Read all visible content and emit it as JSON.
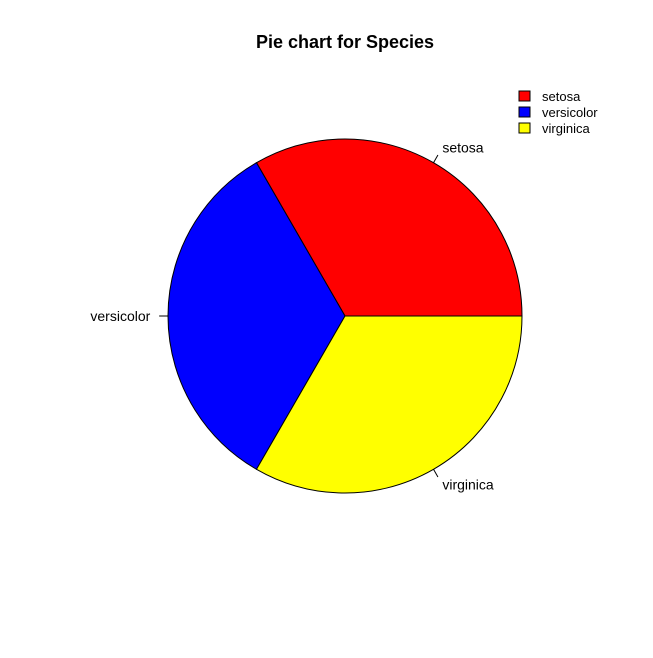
{
  "chart_data": {
    "type": "pie",
    "title": "Pie chart for Species",
    "categories": [
      "setosa",
      "versicolor",
      "virginica"
    ],
    "values": [
      50,
      50,
      50
    ],
    "colors": [
      "#ff0000",
      "#0000ff",
      "#ffff00"
    ],
    "legend": {
      "position": "top-right",
      "entries": [
        "setosa",
        "versicolor",
        "virginica"
      ]
    }
  }
}
